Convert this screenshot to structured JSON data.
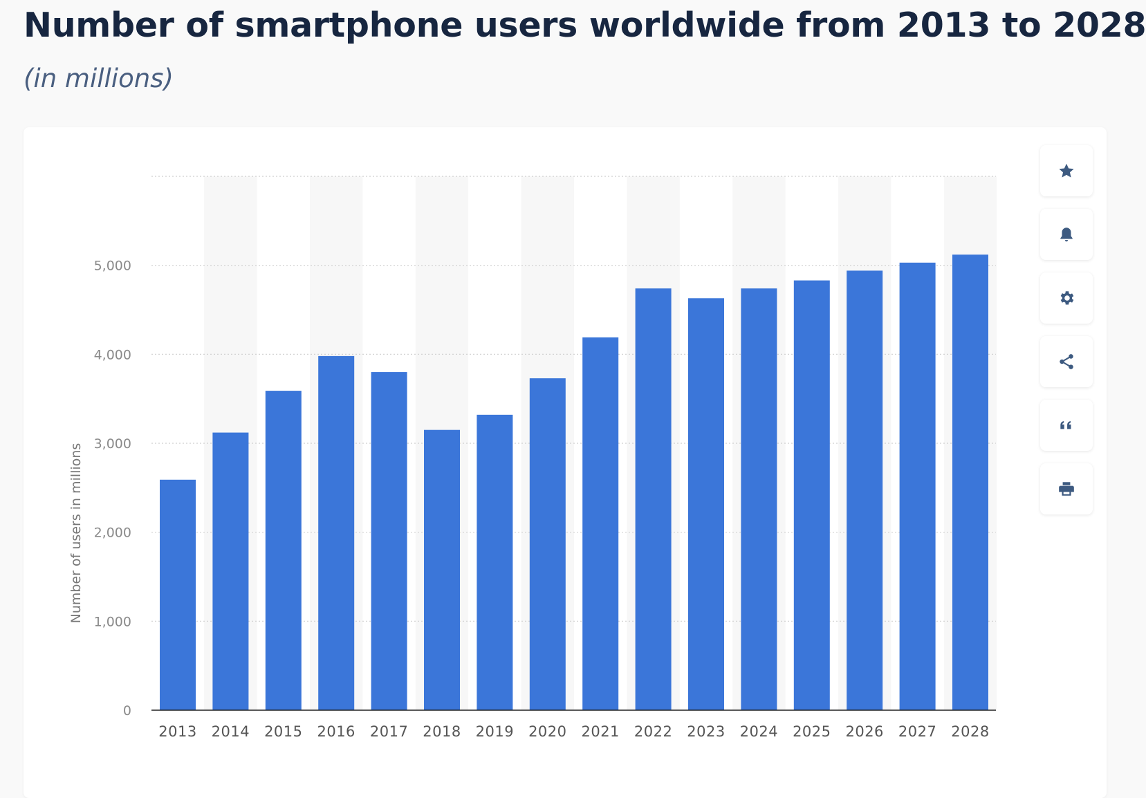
{
  "header": {
    "title": "Number of smartphone users worldwide from 2013 to 2028",
    "subtitle": "(in millions)"
  },
  "toolbar": {
    "items": [
      {
        "icon": "star-icon"
      },
      {
        "icon": "bell-icon"
      },
      {
        "icon": "gear-icon"
      },
      {
        "icon": "share-icon"
      },
      {
        "icon": "quote-icon"
      },
      {
        "icon": "print-icon"
      }
    ]
  },
  "colors": {
    "bar": "#3b76d9",
    "toolbar_icon": "#3d5a80",
    "title": "#172640"
  },
  "chart_data": {
    "type": "bar",
    "title": "Number of smartphone users worldwide from 2013 to 2028",
    "subtitle": "(in millions)",
    "xlabel": "",
    "ylabel": "Number of users in millions",
    "categories": [
      "2013",
      "2014",
      "2015",
      "2016",
      "2017",
      "2018",
      "2019",
      "2020",
      "2021",
      "2022",
      "2023",
      "2024",
      "2025",
      "2026",
      "2027",
      "2028"
    ],
    "values": [
      2590,
      3120,
      3590,
      3980,
      3800,
      3150,
      3320,
      3730,
      4190,
      4740,
      4630,
      4740,
      4830,
      4940,
      5030,
      5120
    ],
    "ylim": [
      0,
      6000
    ],
    "yticks": [
      0,
      1000,
      2000,
      3000,
      4000,
      5000
    ],
    "ytick_labels": [
      "0",
      "1,000",
      "2,000",
      "3,000",
      "4,000",
      "5,000"
    ],
    "grid": true,
    "legend": "none"
  }
}
